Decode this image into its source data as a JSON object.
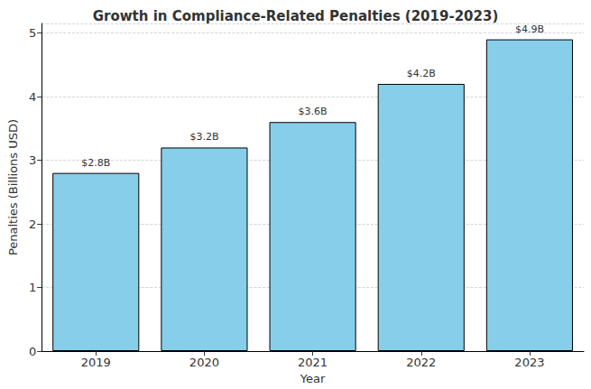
{
  "chart_data": {
    "type": "bar",
    "title": "Growth in Compliance-Related Penalties (2019-2023)",
    "x_label": "Year",
    "y_label": "Penalties (Billions USD)",
    "categories": [
      "2019",
      "2020",
      "2021",
      "2022",
      "2023"
    ],
    "values": [
      2.8,
      3.2,
      3.6,
      4.2,
      4.9
    ],
    "value_labels": [
      "$2.8B",
      "$3.2B",
      "$3.6B",
      "$4.2B",
      "$4.9B"
    ],
    "data_labels": true,
    "color": "#87ceeb",
    "ylim": [
      0,
      5.15
    ],
    "yticks": [
      0,
      1,
      2,
      3,
      4,
      5
    ],
    "grid": true
  }
}
